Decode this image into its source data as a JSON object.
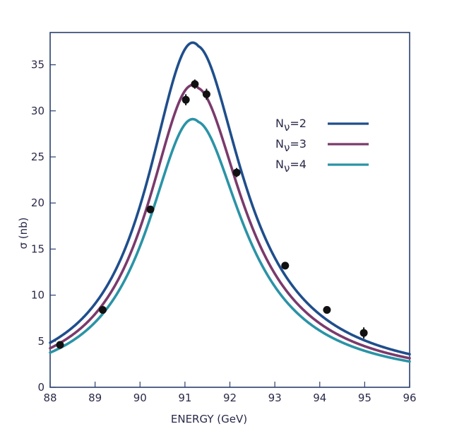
{
  "chart_data": {
    "type": "line",
    "xlabel": "ENERGY (GeV)",
    "ylabel": "σ (nb)",
    "xlim": [
      88,
      96
    ],
    "ylim": [
      0,
      38.5
    ],
    "x_ticks": [
      88,
      89,
      90,
      91,
      92,
      93,
      94,
      95,
      96
    ],
    "y_ticks": [
      0,
      5,
      10,
      15,
      20,
      25,
      30,
      35
    ],
    "grid": false,
    "legend_position": "top-right",
    "series": [
      {
        "name": "Nν=2",
        "label_main": "N",
        "label_sub": "ν",
        "label_rest": "=2",
        "color": "#1f4e8c",
        "peak_x": 91.28,
        "peak_y": 37.4,
        "x": [
          88.0,
          88.5,
          89.0,
          89.5,
          90.0,
          90.5,
          91.0,
          91.28,
          91.5,
          92.0,
          92.5,
          93.0,
          93.5,
          94.0,
          94.5,
          95.0,
          95.5,
          96.0
        ],
        "values": [
          4.2,
          5.8,
          8.3,
          12.3,
          19.3,
          29.9,
          36.8,
          37.4,
          36.5,
          29.5,
          21.2,
          15.1,
          11.2,
          8.7,
          7.0,
          5.9,
          5.0,
          4.4
        ]
      },
      {
        "name": "Nν=3",
        "label_main": "N",
        "label_sub": "ν",
        "label_rest": "=3",
        "color": "#7a3a6c",
        "peak_x": 91.28,
        "peak_y": 32.8,
        "x": [
          88.0,
          88.5,
          89.0,
          89.5,
          90.0,
          90.5,
          91.0,
          91.28,
          91.5,
          92.0,
          92.5,
          93.0,
          93.5,
          94.0,
          94.5,
          95.0,
          95.5,
          96.0
        ],
        "values": [
          3.9,
          5.5,
          7.8,
          11.4,
          17.6,
          26.6,
          32.3,
          32.8,
          32.1,
          26.3,
          19.3,
          14.0,
          10.5,
          8.2,
          6.6,
          5.5,
          4.7,
          4.0
        ]
      },
      {
        "name": "Nν=4",
        "label_main": "N",
        "label_sub": "ν",
        "label_rest": "=4",
        "color": "#2a93a6",
        "peak_x": 91.28,
        "peak_y": 29.1,
        "x": [
          88.0,
          88.5,
          89.0,
          89.5,
          90.0,
          90.5,
          91.0,
          91.28,
          91.5,
          92.0,
          92.5,
          93.0,
          93.5,
          94.0,
          94.5,
          95.0,
          95.5,
          96.0
        ],
        "values": [
          3.6,
          5.1,
          7.3,
          10.6,
          16.1,
          23.9,
          28.7,
          29.1,
          28.5,
          23.6,
          17.6,
          12.9,
          9.8,
          7.7,
          6.2,
          5.2,
          4.4,
          3.7
        ]
      }
    ],
    "data_points": {
      "color": "#111111",
      "x": [
        88.22,
        89.17,
        90.23,
        91.02,
        91.22,
        91.48,
        92.15,
        93.23,
        94.16,
        94.98
      ],
      "y": [
        4.6,
        8.4,
        19.3,
        31.2,
        32.9,
        31.8,
        23.3,
        13.2,
        8.4,
        5.9
      ],
      "yerr": [
        0.3,
        0.3,
        0.4,
        0.6,
        0.5,
        0.6,
        0.5,
        0.4,
        0.4,
        0.6
      ]
    }
  }
}
